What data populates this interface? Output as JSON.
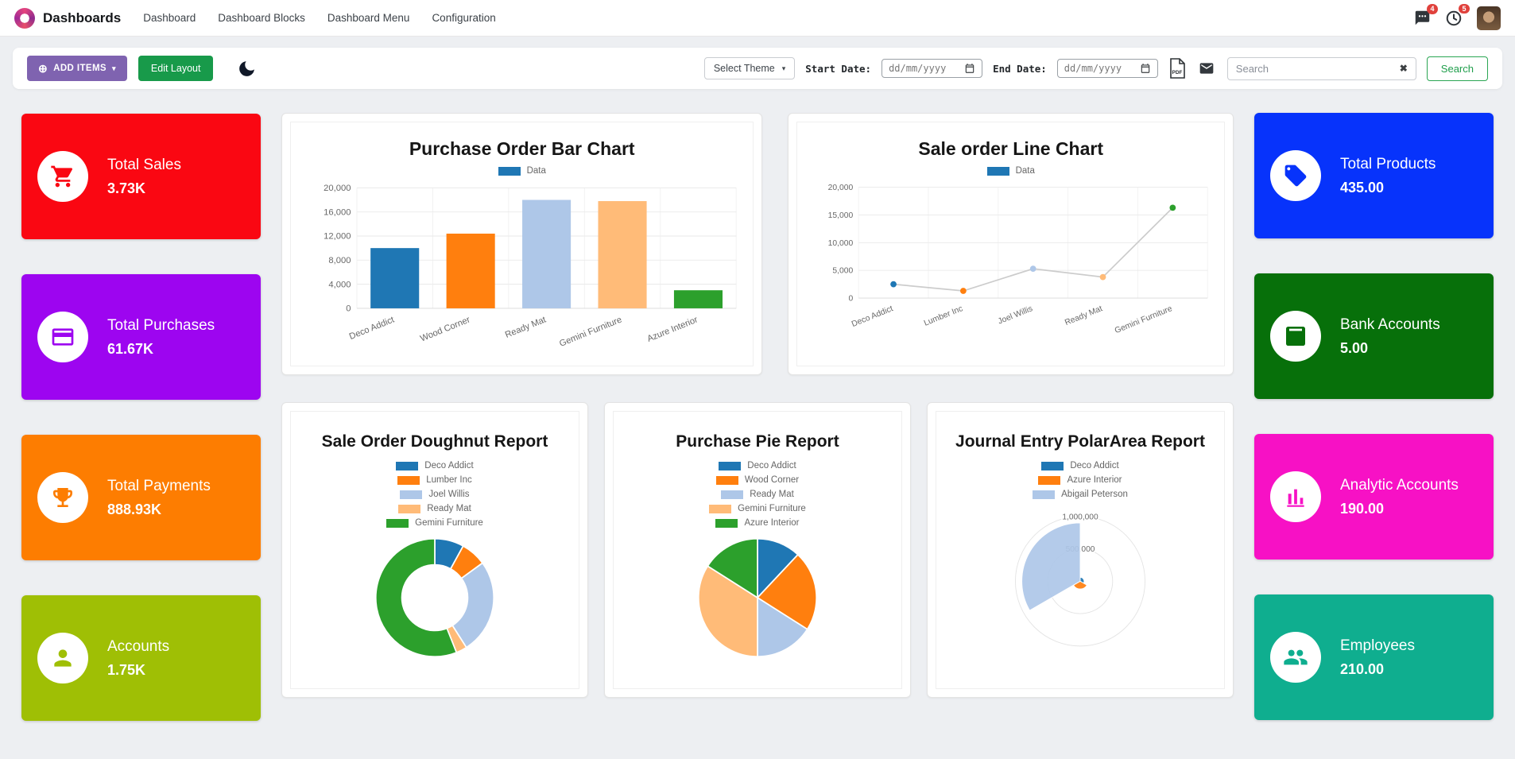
{
  "navbar": {
    "app_title": "Dashboards",
    "menu": [
      "Dashboard",
      "Dashboard Blocks",
      "Dashboard Menu",
      "Configuration"
    ],
    "messages_badge": "4",
    "activities_badge": "5"
  },
  "toolbar": {
    "add_items_label": "ADD ITEMS",
    "edit_layout_label": "Edit Layout",
    "theme_select_label": "Select Theme",
    "start_date_label": "Start Date:",
    "end_date_label": "End Date:",
    "date_placeholder": "dd/mm/yyyy",
    "search_placeholder": "Search",
    "search_button_label": "Search"
  },
  "kpis_left": [
    {
      "title": "Total Sales",
      "value": "3.73K",
      "color": "#fa0712",
      "icon": "cart-icon"
    },
    {
      "title": "Total Purchases",
      "value": "61.67K",
      "color": "#9d05f0",
      "icon": "credit-card-icon"
    },
    {
      "title": "Total Payments",
      "value": "888.93K",
      "color": "#fd7d01",
      "icon": "trophy-icon"
    },
    {
      "title": "Accounts",
      "value": "1.75K",
      "color": "#9fbf05",
      "icon": "person-icon"
    }
  ],
  "kpis_right": [
    {
      "title": "Total Products",
      "value": "435.00",
      "color": "#0733fb",
      "icon": "tag-icon"
    },
    {
      "title": "Bank Accounts",
      "value": "5.00",
      "color": "#07700a",
      "icon": "calculator-icon"
    },
    {
      "title": "Analytic Accounts",
      "value": "190.00",
      "color": "#f711c5",
      "icon": "chart-bars-icon"
    },
    {
      "title": "Employees",
      "value": "210.00",
      "color": "#0fae8f",
      "icon": "people-icon"
    }
  ],
  "chart_data": [
    {
      "type": "bar",
      "title": "Purchase Order Bar Chart",
      "legend": [
        {
          "label": "Data",
          "color": "#1f77b4"
        }
      ],
      "legend_position": "top",
      "categories": [
        "Deco Addict",
        "Wood Corner",
        "Ready Mat",
        "Gemini Furniture",
        "Azure Interior"
      ],
      "values": [
        10000,
        12400,
        18000,
        17800,
        3000
      ],
      "colors": [
        "#1f77b4",
        "#ff7f0e",
        "#aec7e8",
        "#ffbb78",
        "#2ca02c"
      ],
      "ylim": [
        0,
        20000
      ],
      "ytick": 4000,
      "grid": true
    },
    {
      "type": "line",
      "title": "Sale order Line Chart",
      "legend": [
        {
          "label": "Data",
          "color": "#1f77b4"
        }
      ],
      "legend_position": "top",
      "categories": [
        "Deco Addict",
        "Lumber Inc",
        "Joel Willis",
        "Ready Mat",
        "Gemini Furniture"
      ],
      "values": [
        2500,
        1300,
        5300,
        3800,
        16300
      ],
      "colors": [
        "#1f77b4",
        "#ff7f0e",
        "#aec7e8",
        "#ffbb78",
        "#2ca02c"
      ],
      "line_color": "#cccccc",
      "ylim": [
        0,
        20000
      ],
      "ytick": 5000,
      "grid": true
    },
    {
      "type": "doughnut",
      "title": "Sale Order Doughnut Report",
      "labels": [
        "Deco Addict",
        "Lumber Inc",
        "Joel Willis",
        "Ready Mat",
        "Gemini Furniture"
      ],
      "values": [
        8,
        7,
        26,
        3,
        56
      ],
      "colors": [
        "#1f77b4",
        "#ff7f0e",
        "#aec7e8",
        "#ffbb78",
        "#2ca02c"
      ],
      "legend_position": "top"
    },
    {
      "type": "pie",
      "title": "Purchase Pie Report",
      "labels": [
        "Deco Addict",
        "Wood Corner",
        "Ready Mat",
        "Gemini Furniture",
        "Azure Interior"
      ],
      "values": [
        12,
        22,
        16,
        34,
        16
      ],
      "colors": [
        "#1f77b4",
        "#ff7f0e",
        "#aec7e8",
        "#ffbb78",
        "#2ca02c"
      ],
      "legend_position": "top"
    },
    {
      "type": "polarArea",
      "title": "Journal Entry PolarArea Report",
      "labels": [
        "Deco Addict",
        "Azure Interior",
        "Abigail Peterson"
      ],
      "values": [
        60000,
        120000,
        900000
      ],
      "colors": [
        "#1f77b4",
        "#ff7f0e",
        "#aec7e8"
      ],
      "rmax": 1000000,
      "ticks": [
        "500,000",
        "1,000,000"
      ],
      "legend_position": "top"
    }
  ]
}
